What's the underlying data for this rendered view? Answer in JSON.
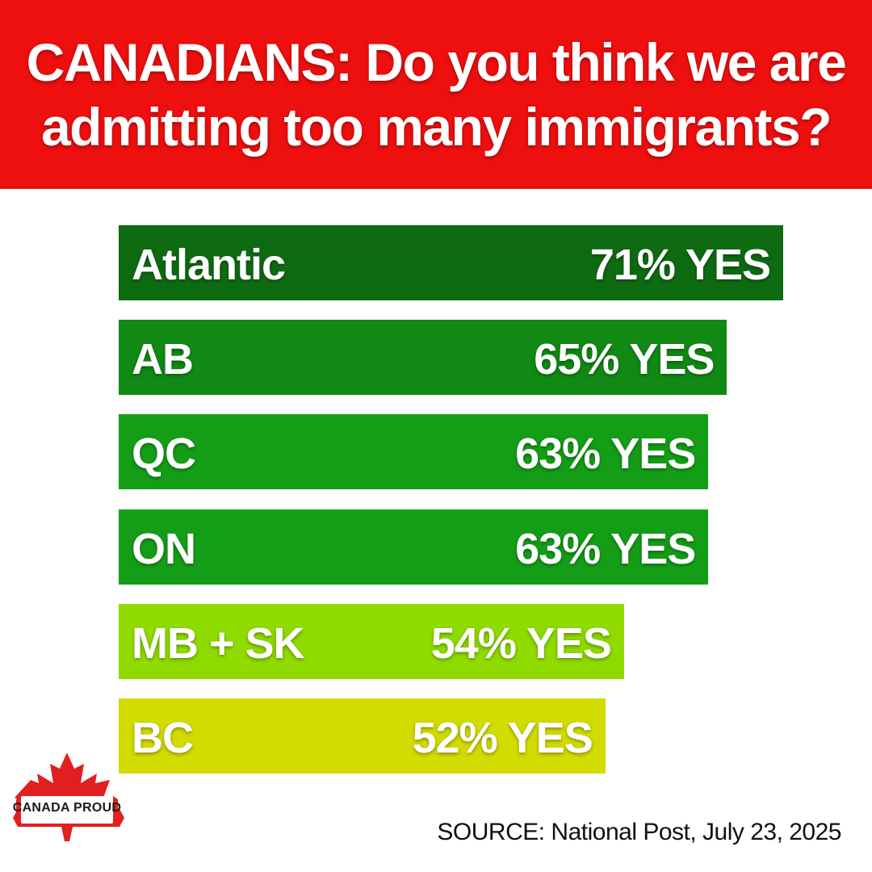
{
  "title": {
    "line1": "CANADIANS: Do you think we are",
    "line2": "admitting too many immigrants?"
  },
  "colors": {
    "header_bg": "#ee0f0f",
    "bars": [
      "#0f6b12",
      "#108a14",
      "#149e17",
      "#149e17",
      "#8fdb00",
      "#d2dc00"
    ]
  },
  "chart_data": {
    "type": "bar",
    "orientation": "horizontal",
    "categories": [
      "Atlantic",
      "AB",
      "QC",
      "ON",
      "MB + SK",
      "BC"
    ],
    "values": [
      71,
      65,
      63,
      63,
      54,
      52
    ],
    "value_labels": [
      "71% YES",
      "65% YES",
      "63% YES",
      "63% YES",
      "54% YES",
      "52% YES"
    ],
    "unit": "%",
    "grid": false,
    "legend": "none"
  },
  "logo": {
    "text": "CANADA PROUD",
    "icon": "maple-leaf-icon"
  },
  "source": "SOURCE: National Post, July 23, 2025"
}
